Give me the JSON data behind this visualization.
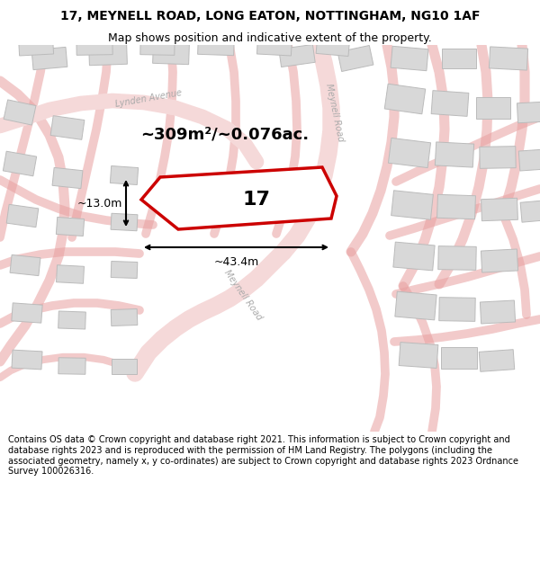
{
  "title_line1": "17, MEYNELL ROAD, LONG EATON, NOTTINGHAM, NG10 1AF",
  "title_line2": "Map shows position and indicative extent of the property.",
  "footer_text": "Contains OS data © Crown copyright and database right 2021. This information is subject to Crown copyright and database rights 2023 and is reproduced with the permission of HM Land Registry. The polygons (including the associated geometry, namely x, y co-ordinates) are subject to Crown copyright and database rights 2023 Ordnance Survey 100026316.",
  "map_bg": "#f0f0f0",
  "road_color": "#e8a0a0",
  "road_alpha": 0.55,
  "building_fill": "#d8d8d8",
  "building_edge": "#bbbbbb",
  "property_fill": "#ffffff",
  "property_edge": "#cc0000",
  "road_label_color": "#aaaaaa",
  "area_text": "~309m²/~0.076ac.",
  "width_text": "~43.4m",
  "height_text": "~13.0m",
  "number_text": "17",
  "street_name_meynell_top": "Meynell Road",
  "street_name_meynell_bot": "Meynell Road",
  "street_name_lynden": "Lynden Avenue",
  "title_fontsize": 10,
  "subtitle_fontsize": 9,
  "footer_fontsize": 7
}
